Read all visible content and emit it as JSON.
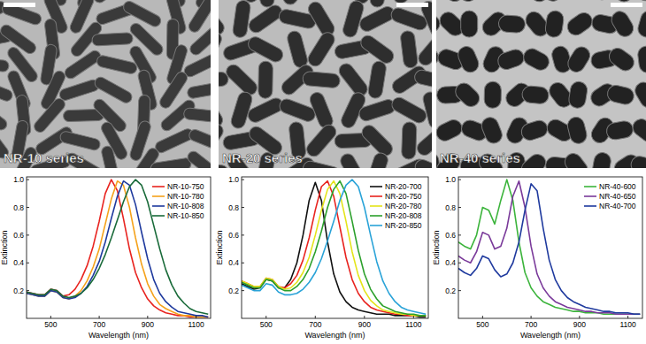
{
  "panels": [
    {
      "label": "NR-10 series"
    },
    {
      "label": "NR-20 series"
    },
    {
      "label": "NR-40 series"
    }
  ],
  "chart_data": [
    {
      "type": "line",
      "x_label": "Wavelength (nm)",
      "y_label": "Extinction",
      "legend": "upper right",
      "grid": false,
      "xlim": [
        400,
        1160
      ],
      "ylim": [
        0,
        1.02
      ],
      "xticks": [
        500,
        700,
        900,
        1100
      ],
      "yticks": [
        0.2,
        0.4,
        0.6,
        0.8,
        {
          "value": 1,
          "label": "1.0"
        }
      ],
      "x": [
        400,
        425,
        450,
        475,
        500,
        525,
        550,
        575,
        600,
        625,
        650,
        675,
        700,
        725,
        750,
        775,
        800,
        825,
        850,
        875,
        900,
        925,
        950,
        975,
        1000,
        1025,
        1050,
        1075,
        1100,
        1125,
        1150
      ],
      "series": [
        {
          "name": "NR-10-750",
          "color": "#e8231f",
          "values": [
            0.19,
            0.18,
            0.17,
            0.17,
            0.21,
            0.2,
            0.16,
            0.17,
            0.21,
            0.28,
            0.38,
            0.52,
            0.7,
            0.9,
            1.0,
            0.92,
            0.72,
            0.5,
            0.33,
            0.22,
            0.14,
            0.09,
            0.06,
            0.04,
            0.03,
            0.02,
            0.02,
            0.01,
            0.01,
            0.01,
            0.01
          ]
        },
        {
          "name": "NR-10-780",
          "color": "#f5a21b",
          "values": [
            0.18,
            0.17,
            0.16,
            0.16,
            0.2,
            0.19,
            0.15,
            0.14,
            0.16,
            0.2,
            0.27,
            0.37,
            0.5,
            0.68,
            0.86,
            0.99,
            0.96,
            0.8,
            0.58,
            0.39,
            0.25,
            0.16,
            0.1,
            0.07,
            0.05,
            0.03,
            0.02,
            0.02,
            0.01,
            0.01,
            0.01
          ]
        },
        {
          "name": "NR-10-808",
          "color": "#1f3a9e",
          "values": [
            0.18,
            0.17,
            0.16,
            0.16,
            0.2,
            0.19,
            0.15,
            0.14,
            0.15,
            0.18,
            0.23,
            0.31,
            0.41,
            0.55,
            0.72,
            0.88,
            0.99,
            0.96,
            0.82,
            0.62,
            0.43,
            0.28,
            0.18,
            0.12,
            0.08,
            0.05,
            0.04,
            0.03,
            0.02,
            0.02,
            0.01
          ]
        },
        {
          "name": "NR-10-850",
          "color": "#1a6b3a",
          "values": [
            0.19,
            0.18,
            0.17,
            0.17,
            0.21,
            0.2,
            0.16,
            0.15,
            0.16,
            0.18,
            0.22,
            0.28,
            0.36,
            0.46,
            0.58,
            0.71,
            0.84,
            0.95,
            1.0,
            0.96,
            0.84,
            0.67,
            0.5,
            0.35,
            0.24,
            0.16,
            0.11,
            0.07,
            0.05,
            0.04,
            0.03
          ]
        }
      ]
    },
    {
      "type": "line",
      "x_label": "Wavelength (nm)",
      "y_label": "Extinction",
      "legend": "upper right",
      "grid": false,
      "xlim": [
        400,
        1160
      ],
      "ylim": [
        0,
        1.02
      ],
      "xticks": [
        500,
        700,
        900,
        1100
      ],
      "yticks": [
        0.2,
        0.4,
        0.6,
        0.8,
        {
          "value": 1,
          "label": "1.0"
        }
      ],
      "x": [
        400,
        425,
        450,
        475,
        500,
        525,
        550,
        575,
        600,
        625,
        650,
        675,
        700,
        725,
        750,
        775,
        800,
        825,
        850,
        875,
        900,
        925,
        950,
        975,
        1000,
        1025,
        1050,
        1075,
        1100,
        1125,
        1150
      ],
      "series": [
        {
          "name": "NR-20-700",
          "color": "#111111",
          "values": [
            0.25,
            0.23,
            0.21,
            0.22,
            0.28,
            0.27,
            0.22,
            0.22,
            0.28,
            0.4,
            0.6,
            0.85,
            0.98,
            0.85,
            0.55,
            0.32,
            0.19,
            0.12,
            0.08,
            0.06,
            0.05,
            0.04,
            0.03,
            0.03,
            0.03,
            0.02,
            0.02,
            0.02,
            0.02,
            0.01,
            0.01
          ]
        },
        {
          "name": "NR-20-750",
          "color": "#e8231f",
          "values": [
            0.27,
            0.25,
            0.23,
            0.23,
            0.29,
            0.28,
            0.23,
            0.22,
            0.25,
            0.31,
            0.42,
            0.58,
            0.78,
            0.95,
            0.99,
            0.88,
            0.66,
            0.44,
            0.28,
            0.18,
            0.12,
            0.08,
            0.06,
            0.05,
            0.04,
            0.03,
            0.03,
            0.02,
            0.02,
            0.02,
            0.02
          ]
        },
        {
          "name": "NR-20-780",
          "color": "#e4e41a",
          "values": [
            0.27,
            0.25,
            0.23,
            0.23,
            0.29,
            0.28,
            0.23,
            0.21,
            0.22,
            0.26,
            0.33,
            0.44,
            0.6,
            0.78,
            0.93,
            0.99,
            0.9,
            0.7,
            0.48,
            0.31,
            0.2,
            0.13,
            0.09,
            0.06,
            0.05,
            0.04,
            0.03,
            0.03,
            0.02,
            0.02,
            0.02
          ]
        },
        {
          "name": "NR-20-808",
          "color": "#2ca02c",
          "values": [
            0.26,
            0.24,
            0.22,
            0.22,
            0.28,
            0.27,
            0.22,
            0.2,
            0.2,
            0.23,
            0.28,
            0.36,
            0.48,
            0.63,
            0.8,
            0.93,
            0.99,
            0.9,
            0.7,
            0.49,
            0.32,
            0.21,
            0.14,
            0.09,
            0.07,
            0.05,
            0.04,
            0.03,
            0.03,
            0.02,
            0.02
          ]
        },
        {
          "name": "NR-20-850",
          "color": "#2aa3d8",
          "values": [
            0.24,
            0.22,
            0.2,
            0.2,
            0.25,
            0.24,
            0.19,
            0.17,
            0.17,
            0.18,
            0.21,
            0.26,
            0.33,
            0.43,
            0.56,
            0.7,
            0.85,
            0.96,
            1.0,
            0.95,
            0.8,
            0.6,
            0.41,
            0.27,
            0.18,
            0.12,
            0.08,
            0.06,
            0.05,
            0.04,
            0.03
          ]
        }
      ]
    },
    {
      "type": "line",
      "x_label": "Wavelength (nm)",
      "y_label": "Extinction",
      "legend": "upper right",
      "grid": false,
      "xlim": [
        400,
        1160
      ],
      "ylim": [
        0,
        1.02
      ],
      "xticks": [
        500,
        700,
        900,
        1100
      ],
      "yticks": [
        0.2,
        0.4,
        0.6,
        0.8,
        {
          "value": 1,
          "label": "1.0"
        }
      ],
      "x": [
        400,
        425,
        450,
        475,
        500,
        525,
        550,
        575,
        600,
        625,
        650,
        675,
        700,
        725,
        750,
        775,
        800,
        825,
        850,
        875,
        900,
        925,
        950,
        975,
        1000,
        1025,
        1050,
        1075,
        1100,
        1125,
        1150
      ],
      "series": [
        {
          "name": "NR-40-600",
          "color": "#3cb43c",
          "values": [
            0.55,
            0.52,
            0.5,
            0.6,
            0.8,
            0.78,
            0.68,
            0.85,
            1.0,
            0.85,
            0.55,
            0.33,
            0.22,
            0.16,
            0.12,
            0.1,
            0.08,
            0.07,
            0.06,
            0.05,
            0.05,
            0.04,
            0.04,
            0.04,
            0.03,
            0.03,
            0.03,
            0.03,
            0.03,
            0.03,
            0.03
          ]
        },
        {
          "name": "NR-40-650",
          "color": "#7a3a9a",
          "values": [
            0.45,
            0.42,
            0.4,
            0.48,
            0.62,
            0.6,
            0.5,
            0.52,
            0.65,
            0.88,
            0.99,
            0.8,
            0.52,
            0.32,
            0.22,
            0.16,
            0.12,
            0.1,
            0.08,
            0.07,
            0.06,
            0.05,
            0.05,
            0.04,
            0.04,
            0.04,
            0.03,
            0.03,
            0.03,
            0.03,
            0.03
          ]
        },
        {
          "name": "NR-40-700",
          "color": "#1f3a9e",
          "values": [
            0.36,
            0.33,
            0.31,
            0.36,
            0.45,
            0.43,
            0.35,
            0.3,
            0.32,
            0.4,
            0.55,
            0.78,
            0.97,
            0.92,
            0.65,
            0.42,
            0.28,
            0.2,
            0.15,
            0.12,
            0.1,
            0.08,
            0.07,
            0.06,
            0.05,
            0.05,
            0.04,
            0.04,
            0.04,
            0.03,
            0.03
          ]
        }
      ]
    }
  ]
}
